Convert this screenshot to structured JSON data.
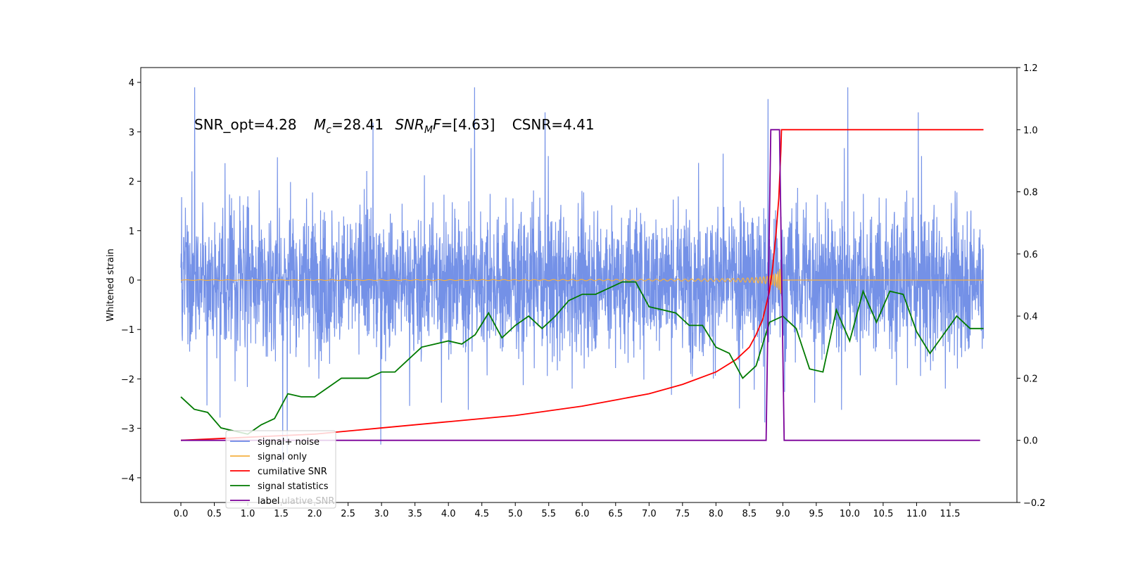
{
  "chart_data": {
    "type": "line",
    "annotation": {
      "snr_opt": "SNR_opt=4.28",
      "mc_symbol": "M",
      "mc_sub": "c",
      "mc_value": "=28.41",
      "snrmf_symbol": "SNR",
      "snrmf_sub": "M",
      "snrmf_mid": "F",
      "snrmf_value": "=[4.63]",
      "csnr": "CSNR=4.41"
    },
    "ylabel_left": "Whitened strain",
    "x_ticks": [
      "0.0",
      "0.5",
      "1.0",
      "1.5",
      "2.0",
      "2.5",
      "3.0",
      "3.5",
      "4.0",
      "4.5",
      "5.0",
      "5.5",
      "6.0",
      "6.5",
      "7.0",
      "7.5",
      "8.0",
      "8.5",
      "9.0",
      "9.5",
      "10.0",
      "10.5",
      "11.0",
      "11.5"
    ],
    "y_left_ticks": [
      "−4",
      "−3",
      "−2",
      "−1",
      "0",
      "1",
      "2",
      "3",
      "4"
    ],
    "y_right_ticks": [
      "−0.2",
      "0.0",
      "0.2",
      "0.4",
      "0.6",
      "0.8",
      "1.0",
      "1.2"
    ],
    "xlim": [
      -0.6,
      12.5
    ],
    "ylim_left": [
      -4.5,
      4.3
    ],
    "ylim_right": [
      -0.2,
      1.2
    ],
    "colors": {
      "noise": "#6d8be6",
      "signal": "#f5b041",
      "cumulative": "#ff0000",
      "statistics": "#007a00",
      "label": "#7b0099"
    },
    "series": [
      {
        "name": "signal+ noise",
        "axis": "left",
        "x_range": [
          0,
          12.0
        ],
        "amplitude": 1.6,
        "peak": 3.9
      },
      {
        "name": "signal only",
        "axis": "left",
        "x_range": [
          0,
          12.0
        ],
        "chirp_end": 8.98,
        "max_amplitude": 0.7
      },
      {
        "name": "cumilative SNR",
        "axis": "right",
        "x": [
          0.0,
          1.0,
          2.0,
          3.0,
          4.0,
          5.0,
          6.0,
          6.5,
          7.0,
          7.5,
          8.0,
          8.3,
          8.5,
          8.6,
          8.7,
          8.8,
          8.85,
          8.9,
          8.94,
          8.97,
          8.98,
          12.0
        ],
        "values": [
          0.0,
          0.01,
          0.02,
          0.04,
          0.06,
          0.08,
          0.11,
          0.13,
          0.15,
          0.18,
          0.22,
          0.26,
          0.3,
          0.34,
          0.39,
          0.48,
          0.56,
          0.67,
          0.78,
          0.93,
          1.0,
          1.0
        ]
      },
      {
        "name": "signal statistics",
        "axis": "right",
        "x": [
          0.0,
          0.2,
          0.4,
          0.6,
          0.8,
          1.0,
          1.2,
          1.4,
          1.6,
          1.8,
          2.0,
          2.2,
          2.4,
          2.6,
          2.8,
          3.0,
          3.2,
          3.4,
          3.6,
          3.8,
          4.0,
          4.2,
          4.4,
          4.6,
          4.8,
          5.0,
          5.2,
          5.4,
          5.6,
          5.8,
          6.0,
          6.2,
          6.4,
          6.6,
          6.8,
          7.0,
          7.2,
          7.4,
          7.6,
          7.8,
          8.0,
          8.2,
          8.4,
          8.6,
          8.8,
          9.0,
          9.2,
          9.4,
          9.6,
          9.8,
          10.0,
          10.2,
          10.4,
          10.6,
          10.8,
          11.0,
          11.2,
          11.4,
          11.6,
          11.8,
          12.0
        ],
        "values": [
          0.14,
          0.1,
          0.09,
          0.04,
          0.03,
          0.02,
          0.05,
          0.07,
          0.15,
          0.14,
          0.14,
          0.17,
          0.2,
          0.2,
          0.2,
          0.22,
          0.22,
          0.26,
          0.3,
          0.31,
          0.32,
          0.31,
          0.34,
          0.41,
          0.33,
          0.37,
          0.4,
          0.36,
          0.4,
          0.45,
          0.47,
          0.47,
          0.49,
          0.51,
          0.51,
          0.43,
          0.42,
          0.41,
          0.37,
          0.37,
          0.3,
          0.28,
          0.2,
          0.24,
          0.38,
          0.4,
          0.36,
          0.23,
          0.22,
          0.42,
          0.32,
          0.48,
          0.38,
          0.48,
          0.47,
          0.35,
          0.28,
          0.34,
          0.4,
          0.36,
          0.36
        ]
      },
      {
        "name": "label",
        "axis": "right",
        "x": [
          0.0,
          8.75,
          8.82,
          8.95,
          9.02,
          11.95
        ],
        "values": [
          0.0,
          0.0,
          1.0,
          1.0,
          0.0,
          0.0
        ]
      }
    ],
    "legend": {
      "placement": "lower-left",
      "entries": [
        "signal+ noise",
        "signal only",
        "cumilative SNR",
        "signal statistics",
        "label"
      ],
      "ghost_text": "ulative SNR"
    }
  }
}
